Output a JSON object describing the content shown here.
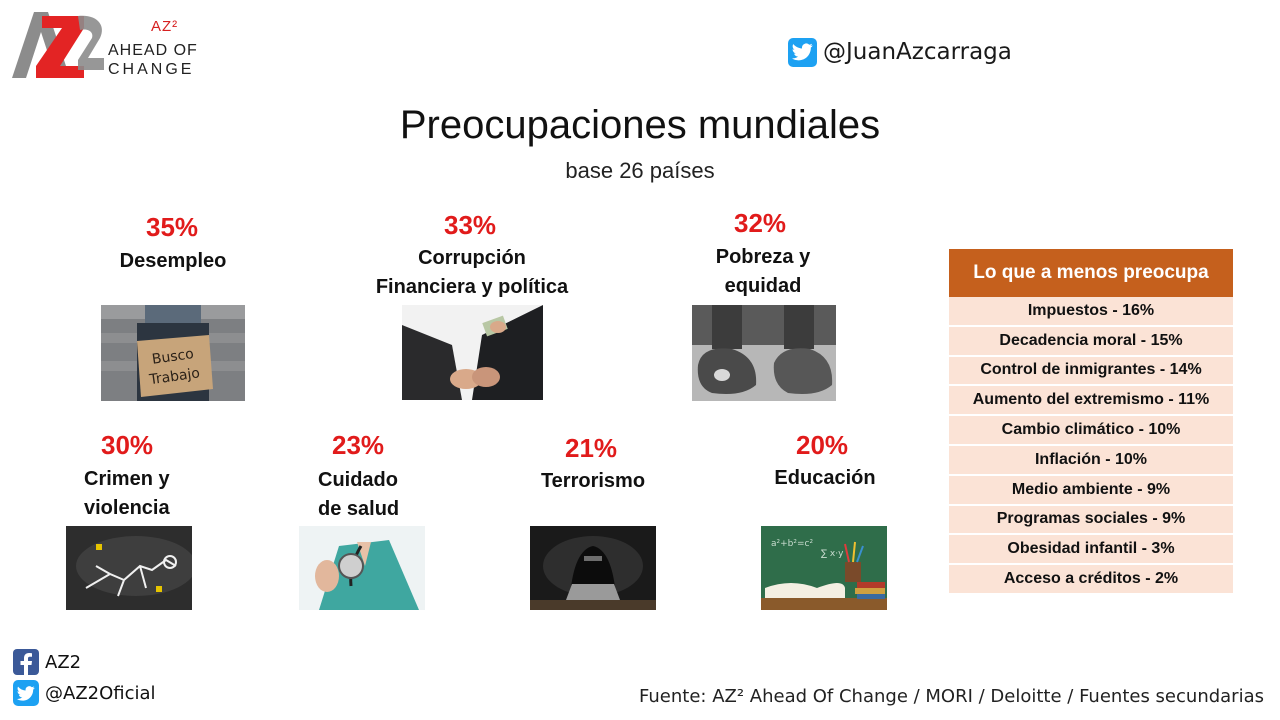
{
  "brand": {
    "logo_letters": "AZ2",
    "superscript": "AZ²",
    "line1": "AHEAD OF",
    "line2": "CHANGE"
  },
  "header": {
    "twitter_handle": "@JuanAzcarraga"
  },
  "title": "Preocupaciones mundiales",
  "subtitle": "base 26 países",
  "concerns": [
    {
      "pct": "35%",
      "label_lines": [
        "Desempleo"
      ],
      "photo": "busco-trabajo-sign"
    },
    {
      "pct": "33%",
      "label_lines": [
        "Corrupción",
        "Financiera y política"
      ],
      "photo": "handshake-money"
    },
    {
      "pct": "32%",
      "label_lines": [
        "Pobreza y",
        "equidad"
      ],
      "photo": "worn-shoes"
    },
    {
      "pct": "30%",
      "label_lines": [
        "Crimen y",
        "violencia"
      ],
      "photo": "crime-scene-outline"
    },
    {
      "pct": "23%",
      "label_lines": [
        "Cuidado",
        "de salud"
      ],
      "photo": "doctor-stethoscope"
    },
    {
      "pct": "21%",
      "label_lines": [
        "Terrorismo"
      ],
      "photo": "hooded-hacker"
    },
    {
      "pct": "20%",
      "label_lines": [
        "Educación"
      ],
      "photo": "books-chalkboard"
    }
  ],
  "least_concern": {
    "heading": "Lo que a menos preocupa",
    "items": [
      "Impuestos - 16%",
      "Decadencia moral - 15%",
      "Control de inmigrantes - 14%",
      "Aumento del extremismo - 11%",
      "Cambio climático - 10%",
      "Inflación - 10%",
      "Medio ambiente - 9%",
      "Programas sociales - 9%",
      "Obesidad infantil - 3%",
      "Acceso a créditos - 2%"
    ]
  },
  "footer": {
    "facebook": "AZ2",
    "twitter": "@AZ2Oficial",
    "source": "Fuente: AZ² Ahead Of Change / MORI / Deloitte / Fuentes secundarias"
  },
  "colors": {
    "accent_red": "#e11b1b",
    "table_header": "#c5601d",
    "table_row": "#fbe3d6",
    "twitter_blue": "#1da1f2",
    "facebook_blue": "#3b5998"
  }
}
